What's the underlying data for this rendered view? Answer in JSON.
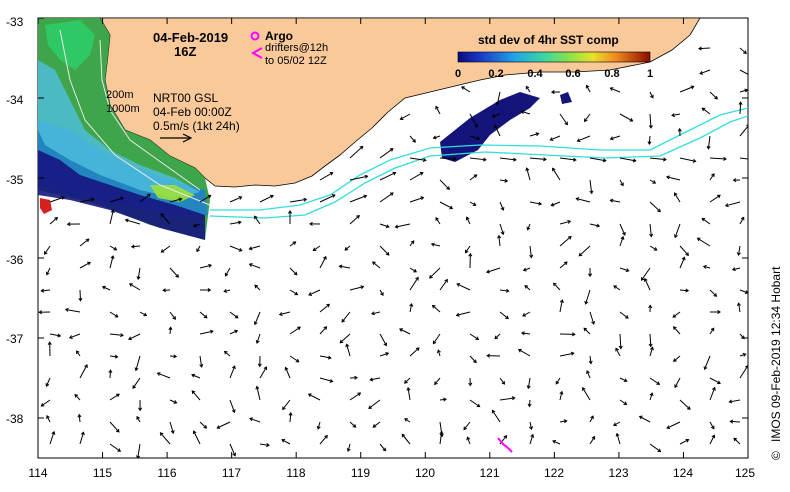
{
  "header": {
    "date": "04-Feb-2019",
    "time": "16Z"
  },
  "legend": {
    "argo_label": "Argo",
    "drifters_line1": "drifters@12h",
    "drifters_line2": "to 05/02 12Z",
    "argo_color": "#ff00ff",
    "drifter_color": "#ff00ff"
  },
  "isobaths": {
    "label_200": "200m",
    "label_1000": "1000m"
  },
  "velocity_key": {
    "line1": "NRT00 GSL",
    "line2": "04-Feb 00:00Z",
    "line3": "0.5m/s (1kt 24h)"
  },
  "colorbar": {
    "title": "std dev of 4hr SST comp",
    "ticks": [
      "0",
      "0.2",
      "0.4",
      "0.6",
      "0.8",
      "1"
    ],
    "range": [
      0,
      1
    ]
  },
  "credit": "IMOS 09-Feb-2019 12:34 Hobart",
  "copyright_symbol": "©",
  "axes": {
    "lon_ticks": [
      "114",
      "115",
      "116",
      "117",
      "118",
      "119",
      "120",
      "121",
      "122",
      "123",
      "124",
      "125"
    ],
    "lat_ticks": [
      "-33",
      "-34",
      "-35",
      "-36",
      "-37",
      "-38"
    ],
    "lon_range": [
      114,
      125
    ],
    "lat_range": [
      -38.5,
      -33
    ]
  },
  "colors": {
    "land": "#f9c99a",
    "current_path": "#33dddd",
    "vectors": "#000000"
  }
}
